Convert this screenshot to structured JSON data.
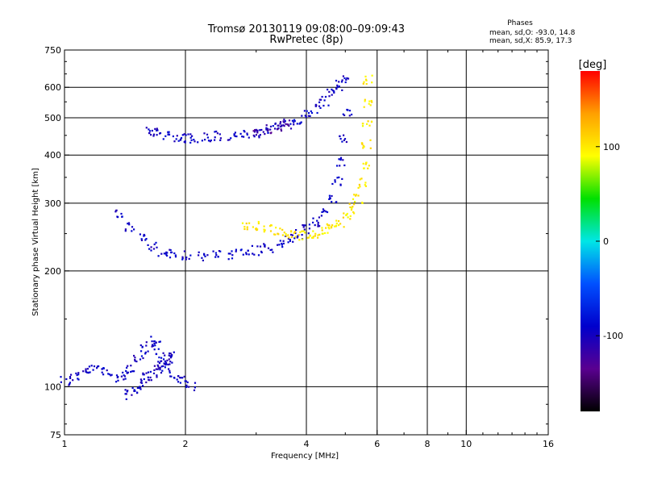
{
  "chart_data": {
    "type": "scatter",
    "title": "Tromsø 20130119 09:08:00–09:09:43",
    "subtitle": "RwPretec (8p)",
    "xlabel": "Frequency [MHz]",
    "ylabel": "Stationary phase Virtual Height [km]",
    "x_scale": "log",
    "y_scale": "log",
    "xlim": [
      1,
      16
    ],
    "ylim": [
      75,
      750
    ],
    "x_ticks": [
      1,
      2,
      4,
      6,
      8,
      10,
      16
    ],
    "y_ticks": [
      75,
      100,
      200,
      300,
      400,
      500,
      600,
      750
    ],
    "grid": true,
    "stats": {
      "heading": "Phases",
      "line1": "mean, sd,O: -93.0, 14.8",
      "line2": "mean, sd,X: 85.9, 17.3"
    },
    "colorbar": {
      "label": "[deg]",
      "range": [
        -180,
        180
      ],
      "ticks": [
        100,
        0,
        -100
      ],
      "colors": [
        "#ff0000",
        "#ffa000",
        "#ffff00",
        "#00e000",
        "#00e6e6",
        "#0050ff",
        "#0000cc",
        "#5a0090",
        "#000000"
      ]
    },
    "series": [
      {
        "x": [
          1.0,
          1.06,
          1.12,
          1.18,
          1.25,
          1.32,
          1.4,
          1.46,
          1.52,
          1.58,
          1.63,
          1.68,
          1.73,
          1.79,
          1.86,
          1.95,
          2.05
        ],
        "y": [
          104,
          107,
          110,
          112,
          110,
          106,
          108,
          112,
          118,
          126,
          132,
          128,
          120,
          113,
          108,
          104,
          101
        ],
        "phase": -95
      },
      {
        "x": [
          1.45,
          1.5,
          1.55,
          1.6,
          1.65,
          1.7,
          1.75,
          1.8,
          1.85
        ],
        "y": [
          96,
          99,
          102,
          106,
          109,
          112,
          115,
          118,
          120
        ],
        "phase": -100
      },
      {
        "x": [
          1.62,
          1.7,
          1.8,
          1.9,
          2.0,
          2.1,
          2.25,
          2.4,
          2.6,
          2.8,
          3.0,
          3.2,
          3.4,
          3.6,
          3.8,
          4.0,
          4.2,
          4.4,
          4.6,
          4.8,
          5.0
        ],
        "y": [
          462,
          458,
          452,
          448,
          445,
          444,
          447,
          450,
          452,
          455,
          460,
          467,
          475,
          485,
          497,
          510,
          530,
          555,
          585,
          610,
          630
        ],
        "phase": -95
      },
      {
        "x": [
          3.0,
          3.2,
          3.4,
          3.55
        ],
        "y": [
          460,
          468,
          478,
          485
        ],
        "phase": -120
      },
      {
        "x": [
          1.35,
          1.45,
          1.55,
          1.65,
          1.75,
          1.85,
          2.0,
          2.2,
          2.4,
          2.6,
          2.8,
          3.0,
          3.2,
          3.4,
          3.6,
          3.8,
          4.0,
          4.2,
          4.4,
          4.6,
          4.75,
          4.85,
          4.95,
          5.05
        ],
        "y": [
          285,
          262,
          245,
          232,
          226,
          222,
          220,
          220,
          221,
          222,
          224,
          227,
          231,
          236,
          243,
          250,
          258,
          268,
          285,
          310,
          345,
          385,
          440,
          520
        ],
        "phase": -95
      },
      {
        "x": [
          2.8,
          3.0,
          3.2,
          3.4,
          3.6,
          3.8,
          4.0,
          4.2,
          4.4,
          4.6,
          4.8,
          5.0,
          5.2,
          5.35,
          5.45,
          5.55,
          5.6,
          5.63,
          5.65,
          5.67
        ],
        "y": [
          265,
          262,
          258,
          254,
          250,
          248,
          248,
          250,
          254,
          260,
          268,
          278,
          292,
          310,
          340,
          380,
          430,
          490,
          550,
          630
        ],
        "phase": 100
      }
    ]
  }
}
